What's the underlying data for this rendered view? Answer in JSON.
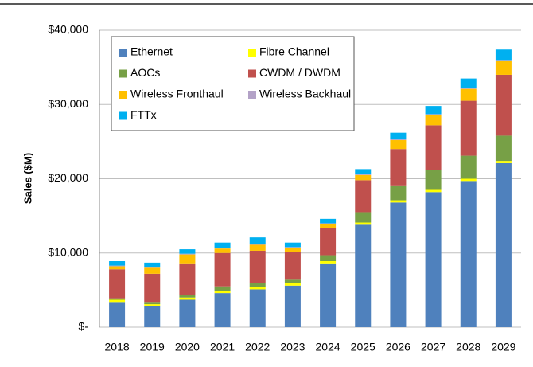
{
  "chart_data": {
    "type": "stacked_bar",
    "y_label": "Sales ($M)",
    "categories": [
      "2018",
      "2019",
      "2020",
      "2021",
      "2022",
      "2023",
      "2024",
      "2025",
      "2026",
      "2027",
      "2028",
      "2029"
    ],
    "series": [
      {
        "name": "Ethernet",
        "color": "#4f81bd",
        "values": [
          3400,
          2800,
          3700,
          4600,
          5100,
          5600,
          8600,
          13800,
          16800,
          18200,
          19700,
          22100
        ]
      },
      {
        "name": "Fibre Channel",
        "color": "#ffff00",
        "values": [
          300,
          300,
          300,
          300,
          300,
          300,
          300,
          300,
          300,
          300,
          300,
          300
        ]
      },
      {
        "name": "AOCs",
        "color": "#77a046",
        "values": [
          200,
          300,
          300,
          600,
          500,
          500,
          800,
          1400,
          1900,
          2700,
          3100,
          3400
        ]
      },
      {
        "name": "CWDM / DWDM",
        "color": "#c0504d",
        "values": [
          3900,
          3800,
          4300,
          4500,
          4400,
          3700,
          3700,
          4300,
          5000,
          6000,
          7400,
          8200
        ]
      },
      {
        "name": "Wireless Fronthaul",
        "color": "#ffc000",
        "values": [
          400,
          800,
          1200,
          600,
          800,
          600,
          500,
          700,
          1200,
          1400,
          1600,
          1900
        ]
      },
      {
        "name": "Wireless Backhaul",
        "color": "#b3a2c7",
        "values": [
          100,
          100,
          100,
          100,
          100,
          100,
          100,
          100,
          100,
          100,
          100,
          100
        ]
      },
      {
        "name": "FTTx",
        "color": "#00b0f0",
        "values": [
          600,
          600,
          600,
          700,
          900,
          600,
          600,
          700,
          900,
          1100,
          1300,
          1400
        ]
      }
    ],
    "ylim": [
      0,
      40000
    ],
    "yticks": [
      {
        "value": 0,
        "label": "$-"
      },
      {
        "value": 10000,
        "label": "$10,000"
      },
      {
        "value": 20000,
        "label": "$20,000"
      },
      {
        "value": 30000,
        "label": "$30,000"
      },
      {
        "value": 40000,
        "label": "$40,000"
      }
    ],
    "grid": true,
    "legend": "top-left"
  }
}
